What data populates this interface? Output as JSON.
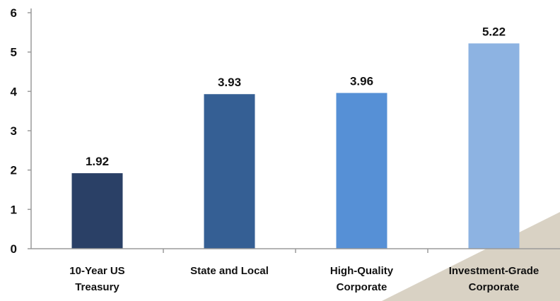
{
  "chart_data": {
    "type": "bar",
    "categories": [
      [
        "10-Year US",
        "Treasury"
      ],
      [
        "State and Local"
      ],
      [
        "High-Quality",
        "Corporate"
      ],
      [
        "Investment-Grade",
        "Corporate"
      ]
    ],
    "values": [
      1.92,
      3.93,
      3.96,
      5.22
    ],
    "data_labels": [
      "1.92",
      "3.93",
      "3.96",
      "5.22"
    ],
    "bar_colors": [
      "#2a4066",
      "#355f94",
      "#5690d6",
      "#8db3e2"
    ],
    "ylim": [
      0,
      6
    ],
    "yticks": [
      {
        "value": 0,
        "label": "0"
      },
      {
        "value": 1,
        "label": "1"
      },
      {
        "value": 2,
        "label": "2"
      },
      {
        "value": 3,
        "label": "3"
      },
      {
        "value": 4,
        "label": "4"
      },
      {
        "value": 5,
        "label": "5"
      },
      {
        "value": 6,
        "label": "6"
      }
    ],
    "grid": false,
    "legend": "none",
    "title": "",
    "xlabel": "",
    "ylabel": ""
  },
  "colors": {
    "axis": "#9a9a9a",
    "decor_band": "#d9d2c4"
  }
}
